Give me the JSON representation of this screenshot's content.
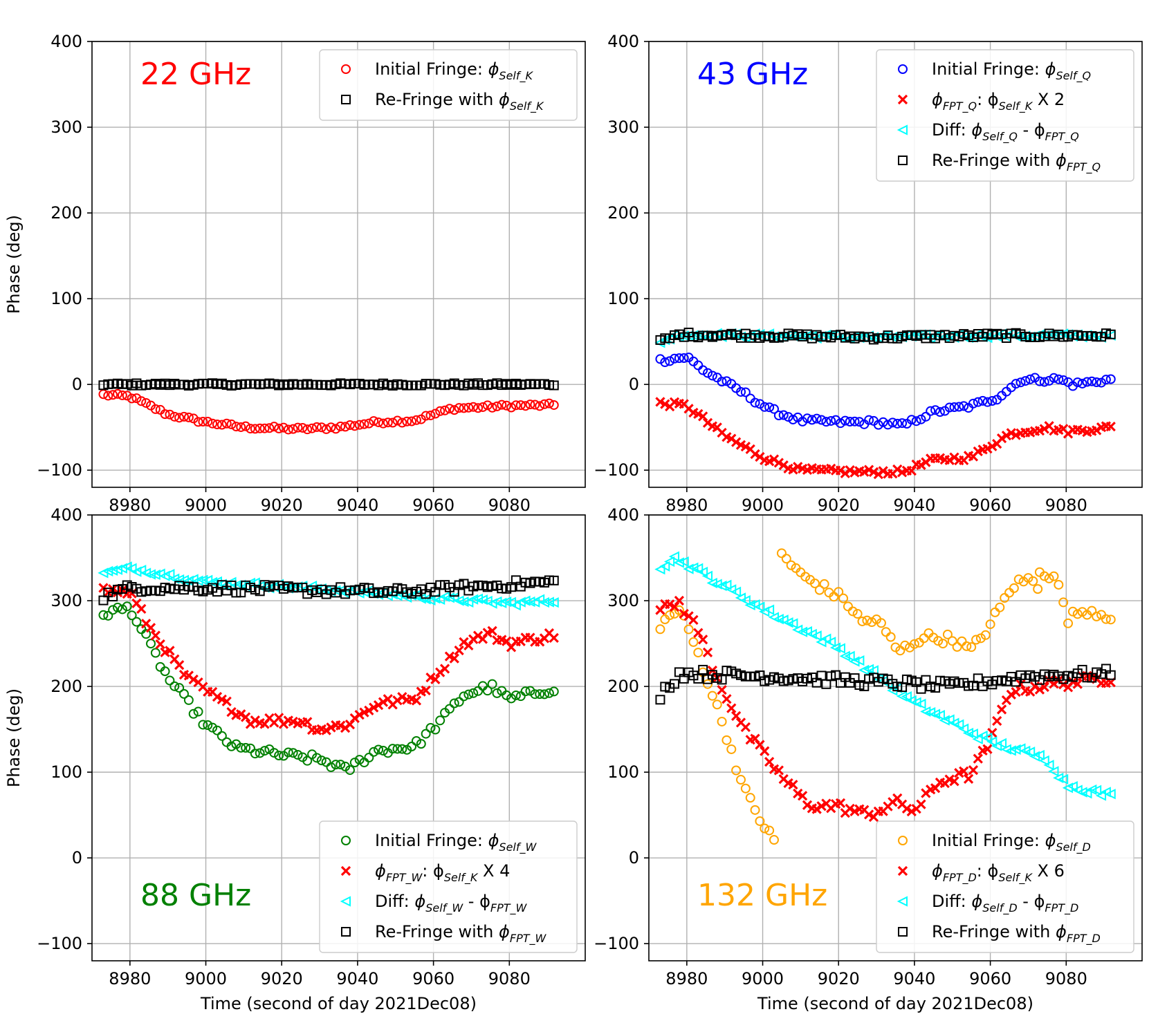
{
  "chart_data": [
    {
      "type": "scatter",
      "panel": "top-left",
      "annotation": "22 GHz",
      "annotation_color": "#ff0000",
      "annotation_position": "top-left",
      "xlabel": "",
      "ylabel": "Phase (deg)",
      "xlim": [
        8970,
        9100
      ],
      "ylim": [
        -120,
        400
      ],
      "xticks": [
        8980,
        9000,
        9020,
        9040,
        9060,
        9080
      ],
      "yticks": [
        -100,
        0,
        100,
        200,
        300,
        400
      ],
      "ytick_labels": [
        "−100",
        "0",
        "100",
        "200",
        "300",
        "400"
      ],
      "grid": true,
      "legend_position": "top-right",
      "series": [
        {
          "label": "Initial Fringe:  ",
          "sym": "ϕ",
          "sub": "Self_K",
          "tail": "",
          "marker": "circle",
          "color": "#ff0000",
          "knots": [
            [
              8973,
              -12
            ],
            [
              8980,
              -14
            ],
            [
              8990,
              -35
            ],
            [
              9000,
              -44
            ],
            [
              9010,
              -50
            ],
            [
              9025,
              -52
            ],
            [
              9035,
              -50
            ],
            [
              9045,
              -44
            ],
            [
              9055,
              -42
            ],
            [
              9065,
              -28
            ],
            [
              9080,
              -25
            ],
            [
              9092,
              -24
            ]
          ],
          "jitter": 2
        },
        {
          "label": "Re-Fringe with ",
          "sym": "ϕ",
          "sub": "Self_K",
          "tail": "",
          "marker": "square",
          "color": "#000000",
          "knots": [
            [
              8973,
              0
            ],
            [
              9092,
              0
            ]
          ],
          "jitter": 1.5
        }
      ]
    },
    {
      "type": "scatter",
      "panel": "top-right",
      "annotation": "43 GHz",
      "annotation_color": "#0000ff",
      "annotation_position": "top-left",
      "xlabel": "",
      "ylabel": "",
      "xlim": [
        8970,
        9100
      ],
      "ylim": [
        -120,
        400
      ],
      "xticks": [
        8980,
        9000,
        9020,
        9040,
        9060,
        9080
      ],
      "yticks": [
        -100,
        0,
        100,
        200,
        300,
        400
      ],
      "ytick_labels": [
        "−100",
        "0",
        "100",
        "200",
        "300",
        "400"
      ],
      "grid": true,
      "legend_position": "top-right",
      "series": [
        {
          "label": "Initial Fringe: ",
          "sym": "ϕ",
          "sub": "Self_Q",
          "tail": "",
          "marker": "circle",
          "color": "#0000ff",
          "knots": [
            [
              8973,
              28
            ],
            [
              8980,
              32
            ],
            [
              8985,
              15
            ],
            [
              8995,
              -10
            ],
            [
              9002,
              -30
            ],
            [
              9010,
              -42
            ],
            [
              9020,
              -44
            ],
            [
              9030,
              -44
            ],
            [
              9037,
              -48
            ],
            [
              9045,
              -32
            ],
            [
              9055,
              -25
            ],
            [
              9062,
              -15
            ],
            [
              9068,
              5
            ],
            [
              9078,
              6
            ],
            [
              9082,
              0
            ],
            [
              9092,
              6
            ]
          ],
          "jitter": 3
        },
        {
          "label": "",
          "sym": "ϕ",
          "sub": "FPT_Q",
          "tail": ": ϕ",
          "tail_sub": "Self_K",
          "tail2": " X 2",
          "marker": "x",
          "color": "#ff0000",
          "knots": [
            [
              8973,
              -22
            ],
            [
              8980,
              -25
            ],
            [
              8990,
              -60
            ],
            [
              9000,
              -85
            ],
            [
              9010,
              -100
            ],
            [
              9025,
              -102
            ],
            [
              9037,
              -102
            ],
            [
              9045,
              -88
            ],
            [
              9055,
              -85
            ],
            [
              9065,
              -58
            ],
            [
              9075,
              -50
            ],
            [
              9080,
              -55
            ],
            [
              9092,
              -50
            ]
          ],
          "jitter": 3
        },
        {
          "label": "Diff: ",
          "sym": "ϕ",
          "sub": "Self_Q",
          "tail": " - ϕ",
          "tail_sub": "FPT_Q",
          "tail2": "",
          "marker": "triangle-left",
          "color": "#00ffff",
          "knots": [
            [
              8973,
              50
            ],
            [
              8978,
              58
            ],
            [
              9000,
              57
            ],
            [
              9030,
              55
            ],
            [
              9060,
              57
            ],
            [
              9080,
              57
            ],
            [
              9092,
              57
            ]
          ],
          "jitter": 2.5
        },
        {
          "label": "Re-Fringe with ",
          "sym": "ϕ",
          "sub": "FPT_Q",
          "tail": "",
          "marker": "square",
          "color": "#000000",
          "knots": [
            [
              8973,
              50
            ],
            [
              8978,
              58
            ],
            [
              9000,
              57
            ],
            [
              9030,
              55
            ],
            [
              9060,
              57
            ],
            [
              9080,
              57
            ],
            [
              9092,
              57
            ]
          ],
          "jitter": 3
        }
      ]
    },
    {
      "type": "scatter",
      "panel": "bottom-left",
      "annotation": "88 GHz",
      "annotation_color": "#008000",
      "annotation_position": "bottom-left",
      "xlabel": "Time (second of day 2021Dec08)",
      "ylabel": "Phase (deg)",
      "xlim": [
        8970,
        9100
      ],
      "ylim": [
        -120,
        400
      ],
      "xticks": [
        8980,
        9000,
        9020,
        9040,
        9060,
        9080
      ],
      "yticks": [
        -100,
        0,
        100,
        200,
        300,
        400
      ],
      "ytick_labels": [
        "−100",
        "0",
        "100",
        "200",
        "300",
        "400"
      ],
      "grid": true,
      "legend_position": "bottom-right",
      "series": [
        {
          "label": "Initial Fringe: ",
          "sym": "ϕ",
          "sub": "Self_W",
          "tail": "",
          "marker": "circle",
          "color": "#008000",
          "knots": [
            [
              8973,
              285
            ],
            [
              8980,
              292
            ],
            [
              8985,
              250
            ],
            [
              8990,
              210
            ],
            [
              9000,
              155
            ],
            [
              9008,
              128
            ],
            [
              9020,
              120
            ],
            [
              9030,
              115
            ],
            [
              9037,
              102
            ],
            [
              9045,
              125
            ],
            [
              9055,
              130
            ],
            [
              9062,
              160
            ],
            [
              9068,
              190
            ],
            [
              9075,
              200
            ],
            [
              9080,
              185
            ],
            [
              9092,
              198
            ]
          ],
          "jitter": 5
        },
        {
          "label": "",
          "sym": "ϕ",
          "sub": "FPT_W",
          "tail": ": ϕ",
          "tail_sub": "Self_K",
          "tail2": " X 4",
          "marker": "x",
          "color": "#ff0000",
          "knots": [
            [
              8973,
              312
            ],
            [
              8980,
              310
            ],
            [
              8985,
              270
            ],
            [
              8995,
              210
            ],
            [
              9005,
              180
            ],
            [
              9012,
              160
            ],
            [
              9025,
              160
            ],
            [
              9030,
              150
            ],
            [
              9037,
              155
            ],
            [
              9045,
              180
            ],
            [
              9055,
              185
            ],
            [
              9062,
              220
            ],
            [
              9068,
              250
            ],
            [
              9075,
              262
            ],
            [
              9080,
              250
            ],
            [
              9092,
              260
            ]
          ],
          "jitter": 5
        },
        {
          "label": "Diff: ",
          "sym": "ϕ",
          "sub": "Self_W",
          "tail": " - ϕ",
          "tail_sub": "FPT_W",
          "tail2": "",
          "marker": "triangle-left",
          "color": "#00ffff",
          "knots": [
            [
              8973,
              332
            ],
            [
              8980,
              338
            ],
            [
              9000,
              322
            ],
            [
              9030,
              314
            ],
            [
              9060,
              303
            ],
            [
              9080,
              297
            ],
            [
              9092,
              300
            ]
          ],
          "jitter": 3
        },
        {
          "label": "Re-Fringe with ",
          "sym": "ϕ",
          "sub": "FPT_W",
          "tail": "",
          "marker": "square",
          "color": "#000000",
          "knots": [
            [
              8973,
              305
            ],
            [
              8980,
              315
            ],
            [
              9000,
              315
            ],
            [
              9030,
              312
            ],
            [
              9050,
              310
            ],
            [
              9070,
              316
            ],
            [
              9092,
              322
            ]
          ],
          "jitter": 5
        }
      ]
    },
    {
      "type": "scatter",
      "panel": "bottom-right",
      "annotation": "132 GHz",
      "annotation_color": "#ffa500",
      "annotation_position": "bottom-left",
      "xlabel": "Time (second of day 2021Dec08)",
      "ylabel": "",
      "xlim": [
        8970,
        9100
      ],
      "ylim": [
        -120,
        400
      ],
      "xticks": [
        8980,
        9000,
        9020,
        9040,
        9060,
        9080
      ],
      "yticks": [
        -100,
        0,
        100,
        200,
        300,
        400
      ],
      "ytick_labels": [
        "−100",
        "0",
        "100",
        "200",
        "300",
        "400"
      ],
      "grid": true,
      "legend_position": "bottom-right",
      "series": [
        {
          "label": "Initial Fringe: ",
          "sym": "ϕ",
          "sub": "Self_D",
          "tail": "",
          "marker": "circle",
          "color": "#ffa500",
          "segments": [
            [
              [
                8973,
                272
              ],
              [
                8978,
                290
              ],
              [
                8982,
                250
              ],
              [
                8986,
                200
              ],
              [
                8990,
                150
              ],
              [
                8995,
                80
              ],
              [
                9000,
                40
              ],
              [
                9004,
                12
              ]
            ],
            [
              [
                9005,
                355
              ],
              [
                9010,
                330
              ],
              [
                9018,
                310
              ],
              [
                9022,
                300
              ],
              [
                9026,
                275
              ],
              [
                9030,
                278
              ],
              [
                9036,
                240
              ],
              [
                9042,
                258
              ],
              [
                9050,
                255
              ],
              [
                9055,
                242
              ],
              [
                9060,
                272
              ],
              [
                9066,
                318
              ],
              [
                9070,
                325
              ],
              [
                9073,
                315
              ]
            ],
            [
              [
                9073,
                338
              ],
              [
                9078,
                320
              ],
              [
                9080,
                278
              ],
              [
                9085,
                290
              ],
              [
                9092,
                282
              ]
            ]
          ],
          "jitter": 6
        },
        {
          "label": "",
          "sym": "ϕ",
          "sub": "FPT_D",
          "tail": ": ϕ",
          "tail_sub": "Self_K",
          "tail2": " X 6",
          "marker": "x",
          "color": "#ff0000",
          "knots": [
            [
              8973,
              288
            ],
            [
              8978,
              298
            ],
            [
              8983,
              265
            ],
            [
              8988,
              210
            ],
            [
              8995,
              150
            ],
            [
              9005,
              95
            ],
            [
              9012,
              62
            ],
            [
              9020,
              60
            ],
            [
              9028,
              50
            ],
            [
              9035,
              65
            ],
            [
              9040,
              55
            ],
            [
              9047,
              90
            ],
            [
              9055,
              98
            ],
            [
              9060,
              135
            ],
            [
              9065,
              195
            ],
            [
              9075,
              202
            ],
            [
              9092,
              210
            ]
          ],
          "jitter": 6
        },
        {
          "label": "Diff: ",
          "sym": "ϕ",
          "sub": "Self_D",
          "tail": " - ϕ",
          "tail_sub": "FPT_D",
          "tail2": "",
          "marker": "triangle-left",
          "color": "#00ffff",
          "knots": [
            [
              8973,
              340
            ],
            [
              8977,
              350
            ],
            [
              9000,
              290
            ],
            [
              9020,
              245
            ],
            [
              9040,
              180
            ],
            [
              9060,
              135
            ],
            [
              9075,
              115
            ],
            [
              9080,
              85
            ],
            [
              9092,
              72
            ]
          ],
          "jitter": 4
        },
        {
          "label": "Re-Fringe with ",
          "sym": "ϕ",
          "sub": "FPT_D",
          "tail": "",
          "marker": "square",
          "color": "#000000",
          "knots": [
            [
              8973,
              190
            ],
            [
              8978,
              215
            ],
            [
              9000,
              212
            ],
            [
              9030,
              205
            ],
            [
              9050,
              200
            ],
            [
              9070,
              212
            ],
            [
              9092,
              215
            ]
          ],
          "jitter": 6
        }
      ]
    }
  ]
}
